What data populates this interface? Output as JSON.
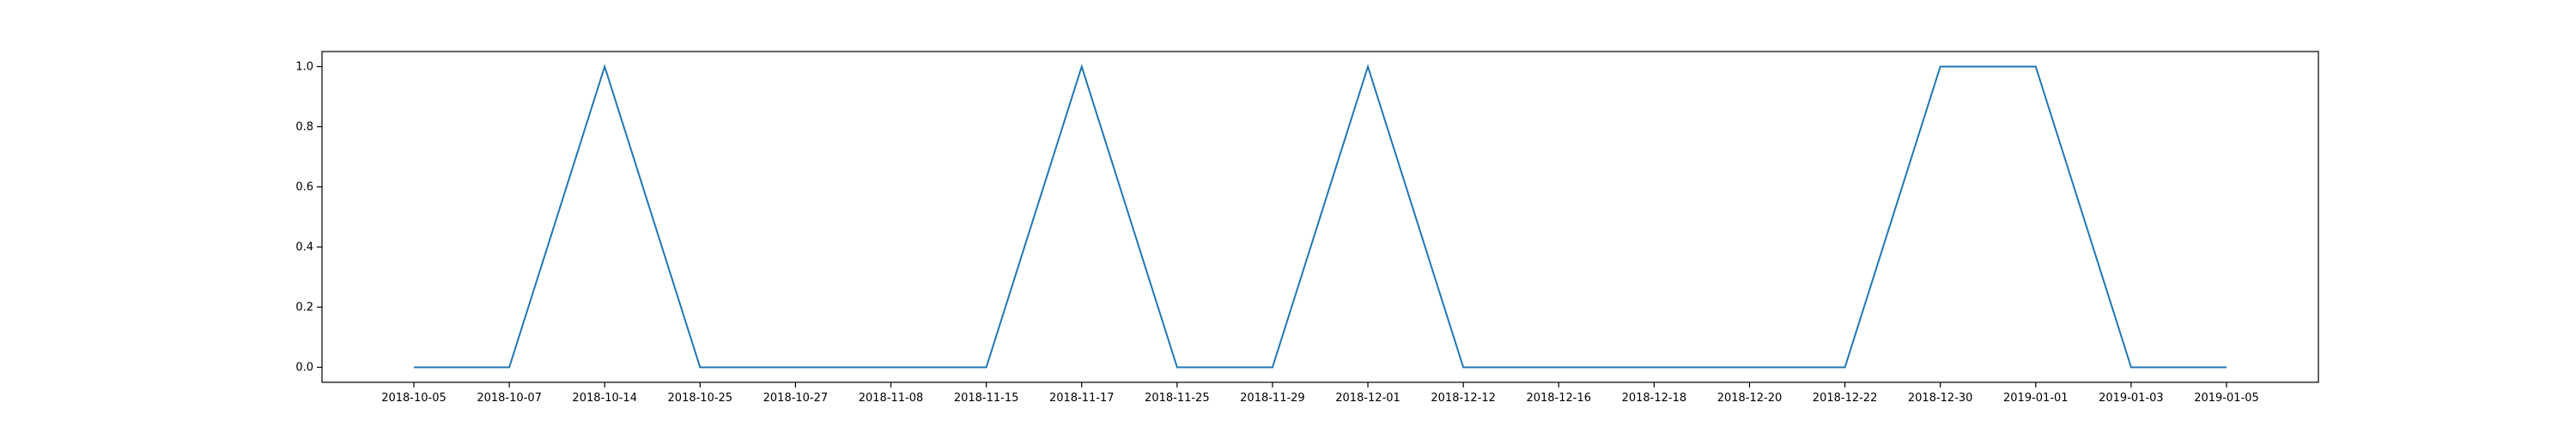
{
  "chart_data": {
    "type": "line",
    "title": "",
    "xlabel": "",
    "ylabel": "",
    "categories": [
      "2018-10-05",
      "2018-10-07",
      "2018-10-14",
      "2018-10-25",
      "2018-10-27",
      "2018-11-08",
      "2018-11-15",
      "2018-11-17",
      "2018-11-25",
      "2018-11-29",
      "2018-12-01",
      "2018-12-12",
      "2018-12-16",
      "2018-12-18",
      "2018-12-20",
      "2018-12-22",
      "2018-12-30",
      "2019-01-01",
      "2019-01-03",
      "2019-01-05"
    ],
    "series": [
      {
        "values": [
          0,
          0,
          1,
          0,
          0,
          0,
          0,
          1,
          0,
          0,
          1,
          0,
          0,
          0,
          0,
          0,
          1,
          1,
          0,
          0
        ]
      }
    ],
    "yticks": [
      "0.0",
      "0.2",
      "0.4",
      "0.6",
      "0.8",
      "1.0"
    ],
    "ylim": [
      -0.05,
      1.05
    ],
    "grid": false,
    "colors": {
      "series": "#1f77b4",
      "axis": "#000000"
    }
  }
}
